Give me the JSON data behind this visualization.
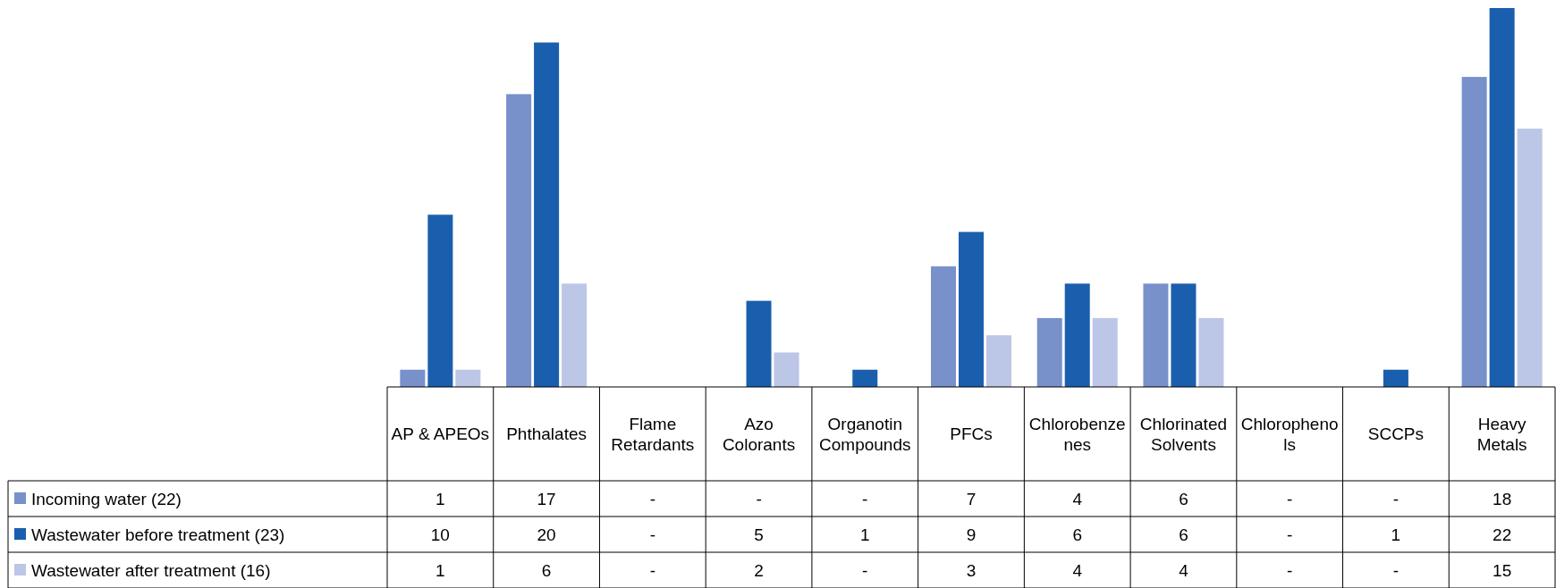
{
  "chart_data": {
    "type": "bar",
    "categories": [
      "AP & APEOs",
      "Phthalates",
      "Flame Retardants",
      "Azo Colorants",
      "Organotin Compounds",
      "PFCs",
      "Chlorobenzenes",
      "Chlorinated Solvents",
      "Chlorophenols",
      "SCCPs",
      "Heavy Metals"
    ],
    "series": [
      {
        "name": "Incoming water (22)",
        "color": "#7891cb",
        "values": [
          1,
          17,
          null,
          null,
          null,
          7,
          4,
          6,
          null,
          null,
          18
        ],
        "value_labels": [
          "1",
          "17",
          "-",
          "-",
          "-",
          "7",
          "4",
          "6",
          "-",
          "-",
          "18"
        ]
      },
      {
        "name": "Wastewater before treatment (23)",
        "color": "#1a5fad",
        "values": [
          10,
          20,
          null,
          5,
          1,
          9,
          6,
          6,
          null,
          1,
          22
        ],
        "value_labels": [
          "10",
          "20",
          "-",
          "5",
          "1",
          "9",
          "6",
          "6",
          "-",
          "1",
          "22"
        ]
      },
      {
        "name": "Wastewater after treatment (16)",
        "color": "#bcc6e6",
        "values": [
          1,
          6,
          null,
          2,
          null,
          3,
          4,
          4,
          null,
          null,
          15
        ],
        "value_labels": [
          "1",
          "6",
          "-",
          "2",
          "-",
          "3",
          "4",
          "4",
          "-",
          "-",
          "15"
        ]
      }
    ],
    "legend": "bottom left"
  }
}
